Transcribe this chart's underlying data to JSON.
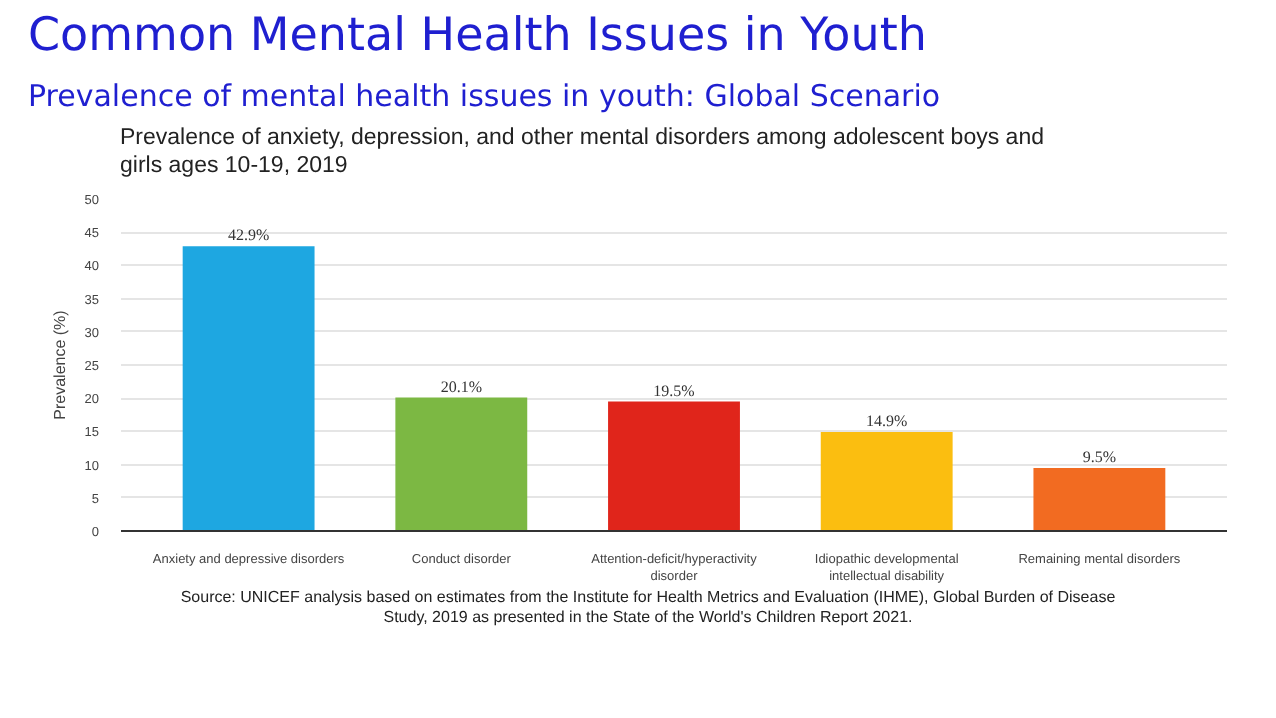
{
  "chart_data": {
    "type": "bar",
    "title": "Common Mental Health Issues in Youth",
    "subtitle": "Prevalence of mental health issues in youth: Global Scenario",
    "ylabel": "Prevalence (%)",
    "categories": [
      "Anxiety and depressive disorders",
      "Conduct disorder",
      "Attention-deficit/hyperactivity disorder",
      "Idiopathic developmental intellectual disability",
      "Remaining mental disorders"
    ],
    "values": [
      42.9,
      20.1,
      19.5,
      14.9,
      9.5
    ],
    "colors": [
      "#1ea7e1",
      "#7cb843",
      "#e0251b",
      "#fbbe10",
      "#f26b21"
    ],
    "value_labels": [
      "42.9%",
      "20.1%",
      "19.5%",
      "14.9%",
      "9.5%"
    ],
    "ylim": [
      0,
      50
    ],
    "yticks": [
      0,
      5,
      10,
      15,
      20,
      25,
      30,
      35,
      40,
      45,
      50
    ],
    "grid": "y",
    "annotations": [
      "Prevalence of anxiety, depression, and other mental disorders among adolescent boys and girls ages 10-19, 2019",
      "Source: UNICEF analysis based on estimates from the Institute for Health Metrics and Evaluation (IHME), Global Burden of Disease Study, 2019 as presented in the State of the World's Children Report 2021."
    ]
  }
}
